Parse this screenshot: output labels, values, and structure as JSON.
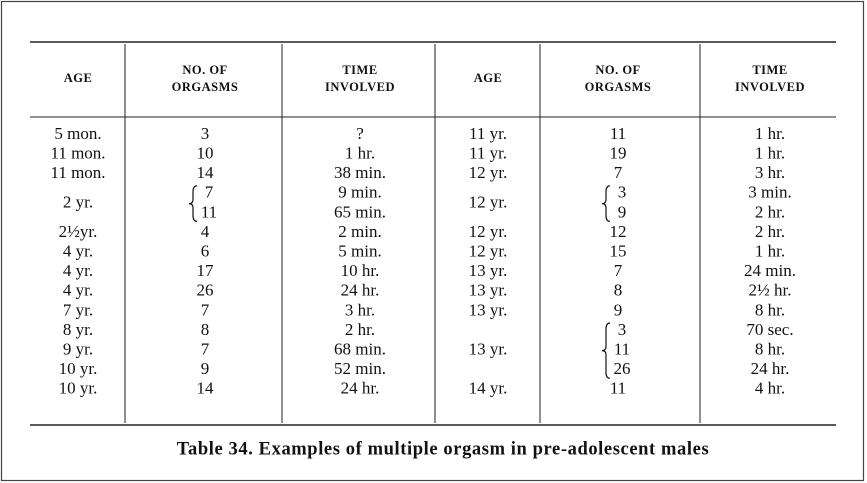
{
  "table": {
    "headers": [
      [
        "AGE"
      ],
      [
        "NO. OF",
        "ORGASMS"
      ],
      [
        "TIME",
        "INVOLVED"
      ],
      [
        "AGE"
      ],
      [
        "NO. OF",
        "ORGASMS"
      ],
      [
        "TIME",
        "INVOLVED"
      ]
    ],
    "left": [
      {
        "age": "5 mon.",
        "orgasms": [
          3
        ],
        "time": [
          "?"
        ]
      },
      {
        "age": "11 mon.",
        "orgasms": [
          10
        ],
        "time": [
          "1 hr."
        ]
      },
      {
        "age": "11 mon.",
        "orgasms": [
          14
        ],
        "time": [
          "38 min."
        ]
      },
      {
        "age": "2 yr.",
        "orgasms": [
          7,
          11
        ],
        "time": [
          "9 min.",
          "65 min."
        ]
      },
      {
        "age": "2½yr.",
        "orgasms": [
          4
        ],
        "time": [
          "2 min."
        ]
      },
      {
        "age": "4 yr.",
        "orgasms": [
          6
        ],
        "time": [
          "5 min."
        ]
      },
      {
        "age": "4 yr.",
        "orgasms": [
          17
        ],
        "time": [
          "10 hr."
        ]
      },
      {
        "age": "4 yr.",
        "orgasms": [
          26
        ],
        "time": [
          "24 hr."
        ]
      },
      {
        "age": "7 yr.",
        "orgasms": [
          7
        ],
        "time": [
          "3 hr."
        ]
      },
      {
        "age": "8 yr.",
        "orgasms": [
          8
        ],
        "time": [
          "2 hr."
        ]
      },
      {
        "age": "9 yr.",
        "orgasms": [
          7
        ],
        "time": [
          "68 min."
        ]
      },
      {
        "age": "10 yr.",
        "orgasms": [
          9
        ],
        "time": [
          "52 min."
        ]
      },
      {
        "age": "10 yr.",
        "orgasms": [
          14
        ],
        "time": [
          "24 hr."
        ]
      }
    ],
    "right": [
      {
        "age": "11 yr.",
        "orgasms": [
          11
        ],
        "time": [
          "1 hr."
        ]
      },
      {
        "age": "11 yr.",
        "orgasms": [
          19
        ],
        "time": [
          "1 hr."
        ]
      },
      {
        "age": "12 yr.",
        "orgasms": [
          7
        ],
        "time": [
          "3 hr."
        ]
      },
      {
        "age": "12 yr.",
        "orgasms": [
          3,
          9
        ],
        "time": [
          "3 min.",
          "2 hr."
        ]
      },
      {
        "age": "12 yr.",
        "orgasms": [
          12
        ],
        "time": [
          "2 hr."
        ]
      },
      {
        "age": "12 yr.",
        "orgasms": [
          15
        ],
        "time": [
          "1 hr."
        ]
      },
      {
        "age": "13 yr.",
        "orgasms": [
          7
        ],
        "time": [
          "24 min."
        ]
      },
      {
        "age": "13 yr.",
        "orgasms": [
          8
        ],
        "time": [
          "2½ hr."
        ]
      },
      {
        "age": "13 yr.",
        "orgasms": [
          9
        ],
        "time": [
          "8 hr."
        ]
      },
      {
        "age": "13 yr.",
        "orgasms": [
          3,
          11,
          26
        ],
        "time": [
          "70 sec.",
          "8 hr.",
          "24 hr."
        ]
      },
      {
        "age": "14 yr.",
        "orgasms": [
          11
        ],
        "time": [
          "4 hr."
        ]
      }
    ],
    "caption": "Table 34. Examples of multiple orgasm in pre-adolescent males"
  }
}
